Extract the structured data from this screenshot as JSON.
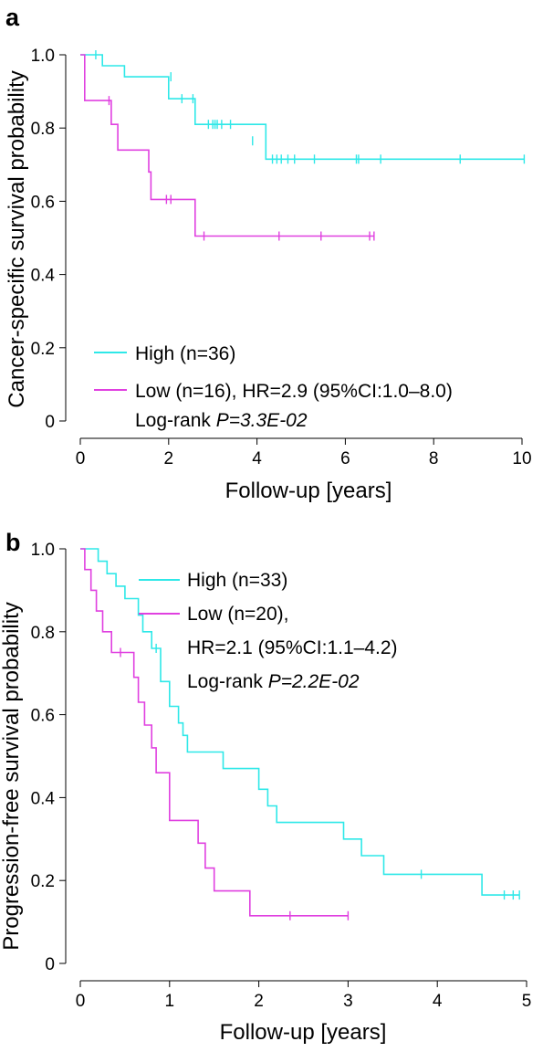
{
  "chart_data": [
    {
      "type": "line",
      "panel_label": "a",
      "xlabel": "Follow-up [years]",
      "ylabel": "Cancer-specific survival probability",
      "xlim": [
        0,
        10
      ],
      "ylim": [
        0,
        1
      ],
      "xticks": [
        "0",
        "2",
        "4",
        "6",
        "8",
        "10"
      ],
      "yticks": [
        "0",
        "0.2",
        "0.4",
        "0.6",
        "0.8",
        "1.0"
      ],
      "grid": false,
      "legend": {
        "placement": "bottom-left",
        "entries": [
          {
            "series": 0,
            "text": "High (n=36)"
          },
          {
            "series": 1,
            "text": "Low (n=16), HR=2.9 (95%CI:1.0–8.0)"
          }
        ],
        "logrank_prefix": "Log-rank ",
        "logrank_italic": "P=3.3E-02"
      },
      "series": [
        {
          "name": "High (n=36)",
          "color": "#2ee8e8",
          "x": [
            0,
            0.5,
            1.0,
            2.0,
            2.6,
            4.2,
            10.05
          ],
          "y": [
            1.0,
            0.97,
            0.94,
            0.88,
            0.81,
            0.715,
            0.715
          ],
          "censored": [
            [
              0.35,
              1.0
            ],
            [
              2.05,
              0.94
            ],
            [
              2.3,
              0.88
            ],
            [
              2.55,
              0.88
            ],
            [
              2.9,
              0.81
            ],
            [
              3.0,
              0.81
            ],
            [
              3.05,
              0.81
            ],
            [
              3.1,
              0.81
            ],
            [
              3.2,
              0.81
            ],
            [
              3.4,
              0.81
            ],
            [
              3.9,
              0.765
            ],
            [
              4.35,
              0.715
            ],
            [
              4.45,
              0.715
            ],
            [
              4.55,
              0.715
            ],
            [
              4.7,
              0.715
            ],
            [
              4.85,
              0.715
            ],
            [
              5.3,
              0.715
            ],
            [
              6.25,
              0.715
            ],
            [
              6.3,
              0.715
            ],
            [
              6.8,
              0.715
            ],
            [
              8.6,
              0.715
            ],
            [
              10.05,
              0.715
            ]
          ]
        },
        {
          "name": "Low (n=16), HR=2.9 (95%CI:1.0–8.0)",
          "color": "#e040e0",
          "x": [
            0,
            0.1,
            0.7,
            0.85,
            1.55,
            1.6,
            2.6,
            6.65
          ],
          "y": [
            1.0,
            0.875,
            0.81,
            0.74,
            0.68,
            0.605,
            0.505,
            0.505
          ],
          "censored": [
            [
              0.65,
              0.875
            ],
            [
              1.95,
              0.605
            ],
            [
              2.05,
              0.605
            ],
            [
              2.8,
              0.505
            ],
            [
              4.5,
              0.505
            ],
            [
              5.45,
              0.505
            ],
            [
              6.55,
              0.505
            ],
            [
              6.65,
              0.505
            ]
          ]
        }
      ]
    },
    {
      "type": "line",
      "panel_label": "b",
      "xlabel": "Follow-up [years]",
      "ylabel": "Progression-free survival probability",
      "xlim": [
        0,
        5
      ],
      "ylim": [
        0,
        1
      ],
      "xticks": [
        "0",
        "1",
        "2",
        "3",
        "4",
        "5"
      ],
      "yticks": [
        "0",
        "0.2",
        "0.4",
        "0.6",
        "0.8",
        "1.0"
      ],
      "grid": false,
      "legend": {
        "placement": "top-right",
        "entries": [
          {
            "series": 0,
            "text": "High (n=33)"
          },
          {
            "series": 1,
            "text": "Low (n=20),"
          }
        ],
        "hr_line": "HR=2.1 (95%CI:1.1–4.2)",
        "logrank_prefix": "Log-rank ",
        "logrank_italic": "P=2.2E-02"
      },
      "series": [
        {
          "name": "High (n=33)",
          "color": "#2ee8e8",
          "x": [
            0,
            0.2,
            0.3,
            0.4,
            0.5,
            0.65,
            0.7,
            0.8,
            0.9,
            1.0,
            1.1,
            1.15,
            1.2,
            1.3,
            1.6,
            1.9,
            2.0,
            2.1,
            2.2,
            2.95,
            3.15,
            3.4,
            4.5,
            4.92
          ],
          "y": [
            1.0,
            0.97,
            0.94,
            0.91,
            0.88,
            0.84,
            0.8,
            0.76,
            0.68,
            0.62,
            0.58,
            0.55,
            0.51,
            0.51,
            0.47,
            0.47,
            0.42,
            0.38,
            0.34,
            0.3,
            0.26,
            0.215,
            0.165,
            0.165
          ],
          "censored": [
            [
              0.85,
              0.76
            ],
            [
              3.82,
              0.215
            ],
            [
              4.75,
              0.165
            ],
            [
              4.85,
              0.165
            ],
            [
              4.92,
              0.165
            ]
          ]
        },
        {
          "name": "Low (n=20)",
          "color": "#e040e0",
          "x": [
            0,
            0.05,
            0.12,
            0.18,
            0.25,
            0.35,
            0.55,
            0.6,
            0.65,
            0.72,
            0.8,
            0.85,
            0.95,
            1.0,
            1.25,
            1.32,
            1.4,
            1.5,
            1.65,
            1.85,
            1.9,
            3.0
          ],
          "y": [
            1.0,
            0.95,
            0.9,
            0.85,
            0.8,
            0.75,
            0.75,
            0.69,
            0.63,
            0.575,
            0.52,
            0.46,
            0.46,
            0.345,
            0.345,
            0.29,
            0.23,
            0.175,
            0.175,
            0.175,
            0.115,
            0.115
          ],
          "censored": [
            [
              0.45,
              0.75
            ],
            [
              2.35,
              0.115
            ],
            [
              3.0,
              0.115
            ]
          ]
        }
      ]
    }
  ]
}
